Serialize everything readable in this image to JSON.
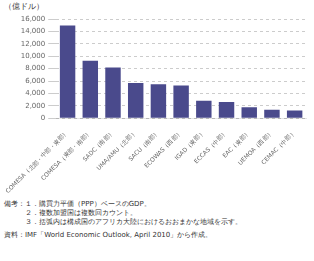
{
  "chart_data": {
    "type": "bar",
    "categories": [
      "COMESA（北部・中部・東部）",
      "COMESA（東部・南部）",
      "SADC（南部）",
      "UMA/AMU（北部）",
      "SACU（南部）",
      "ECOWAS（西部）",
      "IGAD（東部）",
      "ECCAS（中部）",
      "EAC（東部）",
      "UEMOA（西部）",
      "CEMAC（中部）"
    ],
    "values": [
      15000,
      9300,
      8200,
      5700,
      5500,
      5300,
      2800,
      2600,
      1750,
      1350,
      1250
    ],
    "color": "#4a4a8c",
    "ylabel": "（億ドル）",
    "ylim": [
      0,
      16000
    ],
    "yticks": [
      0,
      {
        "value": 2000,
        "label": "2,000"
      },
      {
        "value": 4000,
        "label": "4,000"
      },
      {
        "value": 6000,
        "label": "6,000"
      },
      {
        "value": 8000,
        "label": "8,000"
      },
      {
        "value": 10000,
        "label": "10,000"
      },
      {
        "value": 12000,
        "label": "12,000"
      },
      {
        "value": 14000,
        "label": "14,000"
      },
      {
        "value": 16000,
        "label": "16,000"
      }
    ],
    "grid": true,
    "annotations": [
      "備考：１．購買力平価（PPP）ベースのGDP。",
      "　　　２．複数加盟国は複数回カウント。",
      "　　　３．括弧内は構成国のアフリカ大陸におけるおおまかな地域を示す。",
      "資料：IMF「World Economic Outlook, April 2010」から作成。"
    ]
  }
}
